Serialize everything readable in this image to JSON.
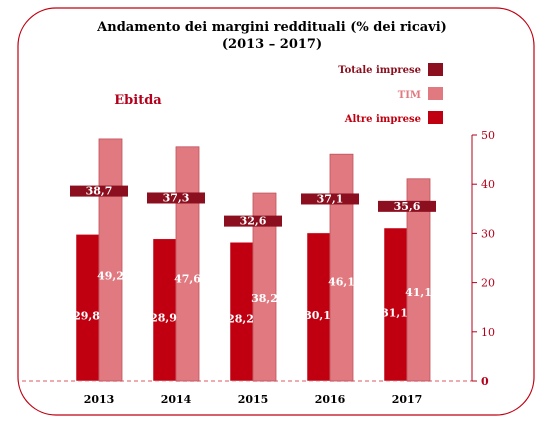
{
  "chart_data": {
    "type": "bar",
    "title": "Andamento dei margini reddituali (% dei ricavi)",
    "subtitle": "(2013 – 2017)",
    "metric_label": "Ebitda",
    "categories": [
      "2013",
      "2014",
      "2015",
      "2016",
      "2017"
    ],
    "series": [
      {
        "name": "Totale imprese",
        "values": [
          38.7,
          37.3,
          32.6,
          37.1,
          35.6
        ],
        "color": "#8b0f1e",
        "labels": [
          "38,7",
          "37,3",
          "32,6",
          "37,1",
          "35,6"
        ]
      },
      {
        "name": "TIM",
        "values": [
          49.2,
          47.6,
          38.2,
          46.1,
          41.1
        ],
        "color": "#e07a80",
        "labels": [
          "49,2",
          "47,6",
          "38,2",
          "46,1",
          "41,1"
        ]
      },
      {
        "name": "Altre imprese",
        "values": [
          29.8,
          28.9,
          28.2,
          30.1,
          31.1
        ],
        "color": "#c00010",
        "labels": [
          "29,8",
          "28,9",
          "28,2",
          "30,1",
          "31,1"
        ]
      }
    ],
    "ylim": [
      0,
      50
    ],
    "yticks": [
      "0",
      "10",
      "20",
      "30",
      "40",
      "50"
    ],
    "y_axis_side": "right",
    "legend_placement": "top-right",
    "grid": false
  }
}
